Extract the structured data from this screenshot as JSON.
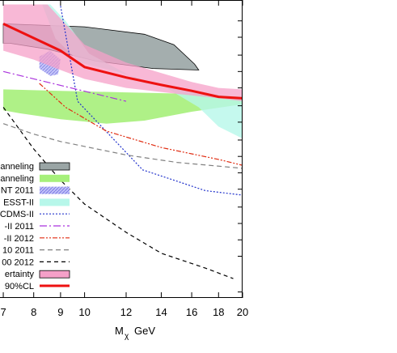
{
  "chart_data": {
    "type": "line",
    "title": "",
    "xlabel_main": "M",
    "xlabel_sub": "χ",
    "xlabel_unit": "GeV",
    "x_ticks": [
      {
        "value": 7,
        "label": "7"
      },
      {
        "value": 8,
        "label": "8"
      },
      {
        "value": 9,
        "label": "9"
      },
      {
        "value": 10,
        "label": "10"
      },
      {
        "value": 12,
        "label": "12"
      },
      {
        "value": 14,
        "label": "14"
      },
      {
        "value": 16,
        "label": "16"
      },
      {
        "value": 18,
        "label": "18"
      },
      {
        "value": 20,
        "label": "20"
      }
    ],
    "x_scale": "log",
    "xlim": [
      6.9,
      20
    ],
    "y_scale": "log",
    "ylim": [
      0,
      1
    ],
    "legend_position": "left",
    "legend": [
      {
        "label": "anneling",
        "style": "fill",
        "color": "#9aa5a5"
      },
      {
        "label": "anneling",
        "style": "fill",
        "color": "#a6f07a"
      },
      {
        "label": "NT 2011",
        "style": "fill",
        "color": "#b8b8f5"
      },
      {
        "label": "ESST-II",
        "style": "fill",
        "color": "#b7f7ea"
      },
      {
        "label": "CDMS-II",
        "style": "line",
        "color": "#2233cc",
        "dash": "2,2"
      },
      {
        "label": "-II 2011",
        "style": "line",
        "color": "#aa33dd",
        "dash": "9,3,2,3"
      },
      {
        "label": "-II 2012",
        "style": "line",
        "color": "#e02b10",
        "dash": "6,2,2,2,2,2"
      },
      {
        "label": "10 2011",
        "style": "line",
        "color": "#808080",
        "dash": "6,4"
      },
      {
        "label": "00 2012",
        "style": "line",
        "color": "#000000",
        "dash": "5,4"
      },
      {
        "label": "ertainty",
        "style": "fill",
        "color": "#f5a0c8"
      },
      {
        "label": "90%CL",
        "style": "thick",
        "color": "#ee1111"
      }
    ],
    "series": [
      {
        "key": "s_cdms",
        "legend_index": 4,
        "points": [
          [
            9.0,
            0.98
          ],
          [
            9.7,
            0.66
          ],
          [
            12.9,
            0.43
          ],
          [
            17.0,
            0.36
          ],
          [
            20,
            0.345
          ]
        ]
      },
      {
        "key": "s_cogent",
        "legend_index": 5,
        "points": [
          [
            7.0,
            0.76
          ],
          [
            12.0,
            0.66
          ]
        ]
      },
      {
        "key": "s_edel2012",
        "legend_index": 6,
        "points": [
          [
            8.2,
            0.72
          ],
          [
            9.2,
            0.64
          ],
          [
            11.0,
            0.56
          ],
          [
            14.0,
            0.505
          ],
          [
            18.0,
            0.465
          ],
          [
            20,
            0.445
          ]
        ]
      },
      {
        "key": "s_xenon2011",
        "legend_index": 7,
        "points": [
          [
            7.0,
            0.585
          ],
          [
            8.0,
            0.55
          ],
          [
            9.0,
            0.525
          ],
          [
            12.0,
            0.48
          ],
          [
            15.0,
            0.455
          ],
          [
            20,
            0.435
          ]
        ]
      },
      {
        "key": "s_xenon2012",
        "legend_index": 8,
        "points": [
          [
            7.0,
            0.64
          ],
          [
            8.0,
            0.5
          ],
          [
            9.0,
            0.395
          ],
          [
            10.0,
            0.315
          ],
          [
            12.0,
            0.22
          ],
          [
            14.0,
            0.15
          ],
          [
            17.0,
            0.1
          ],
          [
            19.2,
            0.065
          ]
        ]
      },
      {
        "key": "s_limit",
        "legend_index": 10,
        "points": [
          [
            7.0,
            0.92
          ],
          [
            9.0,
            0.83
          ],
          [
            10.0,
            0.775
          ],
          [
            12.0,
            0.74
          ],
          [
            14.0,
            0.715
          ],
          [
            16.0,
            0.695
          ],
          [
            18.0,
            0.675
          ],
          [
            20,
            0.67
          ]
        ]
      }
    ],
    "regions": [
      {
        "key": "r_grey",
        "legend_index": 0,
        "points": [
          [
            7.0,
            0.92
          ],
          [
            10.0,
            0.91
          ],
          [
            13.0,
            0.885
          ],
          [
            14.8,
            0.85
          ],
          [
            16.2,
            0.785
          ],
          [
            16.5,
            0.765
          ],
          [
            13.5,
            0.77
          ],
          [
            10.5,
            0.795
          ],
          [
            8.5,
            0.835
          ],
          [
            7.2,
            0.855
          ],
          [
            7.0,
            0.855
          ]
        ]
      },
      {
        "key": "r_green",
        "legend_index": 1,
        "points": [
          [
            7.0,
            0.7
          ],
          [
            9.0,
            0.695
          ],
          [
            12.0,
            0.69
          ],
          [
            16.0,
            0.685
          ],
          [
            20,
            0.675
          ],
          [
            20,
            0.65
          ],
          [
            16.0,
            0.625
          ],
          [
            13.0,
            0.595
          ],
          [
            11.0,
            0.585
          ],
          [
            9.0,
            0.6
          ],
          [
            7.5,
            0.62
          ],
          [
            7.0,
            0.63
          ]
        ]
      },
      {
        "key": "r_cyan",
        "legend_index": 3,
        "points": [
          [
            8.6,
            0.985
          ],
          [
            9.2,
            0.93
          ],
          [
            10.2,
            0.82
          ],
          [
            13.0,
            0.72
          ],
          [
            16.0,
            0.695
          ],
          [
            20,
            0.67
          ],
          [
            20,
            0.535
          ],
          [
            18.0,
            0.575
          ],
          [
            16.5,
            0.64
          ],
          [
            14.0,
            0.715
          ],
          [
            11.5,
            0.76
          ],
          [
            9.8,
            0.79
          ],
          [
            8.8,
            0.87
          ],
          [
            8.3,
            0.985
          ]
        ]
      },
      {
        "key": "r_blue",
        "legend_index": 2,
        "points": [
          [
            8.6,
            0.83
          ],
          [
            9.0,
            0.8
          ],
          [
            8.9,
            0.75
          ],
          [
            8.6,
            0.745
          ],
          [
            8.2,
            0.77
          ],
          [
            8.2,
            0.81
          ]
        ]
      },
      {
        "key": "r_pink",
        "legend_index": 9,
        "points": [
          [
            7.0,
            0.985
          ],
          [
            8.5,
            0.985
          ],
          [
            10.0,
            0.85
          ],
          [
            12.0,
            0.79
          ],
          [
            14.0,
            0.755
          ],
          [
            16.0,
            0.725
          ],
          [
            18.0,
            0.705
          ],
          [
            20,
            0.7
          ],
          [
            20,
            0.66
          ],
          [
            18.0,
            0.67
          ],
          [
            15.0,
            0.685
          ],
          [
            12.0,
            0.705
          ],
          [
            10.0,
            0.735
          ],
          [
            9.0,
            0.765
          ],
          [
            8.0,
            0.8
          ],
          [
            7.0,
            0.83
          ]
        ]
      }
    ]
  }
}
